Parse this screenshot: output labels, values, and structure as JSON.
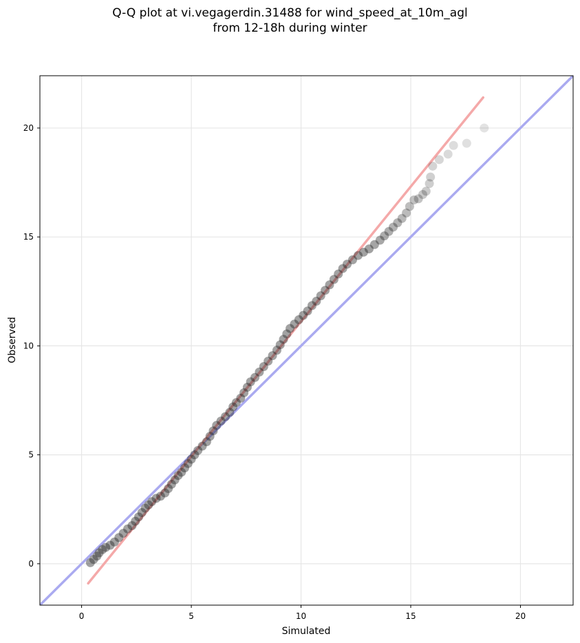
{
  "chart_data": {
    "type": "scatter",
    "title_lines": [
      "Q-Q plot at vi.vegagerdin.31488 for wind_speed_at_10m_agl",
      "from 12-18h during winter"
    ],
    "xlabel": "Simulated",
    "ylabel": "Observed",
    "xlim": [
      -1.9,
      22.4
    ],
    "ylim": [
      -1.9,
      22.4
    ],
    "xticks": [
      0,
      5,
      10,
      15,
      20
    ],
    "yticks": [
      0,
      5,
      10,
      15,
      20
    ],
    "grid": true,
    "reference_line": {
      "name": "1:1",
      "color": "#aaaaf0",
      "from": [
        -1.9,
        -1.9
      ],
      "to": [
        22.4,
        22.4
      ]
    },
    "fit_line": {
      "color": "#f4a9a9",
      "from": [
        0.3,
        -0.9
      ],
      "to": [
        18.3,
        21.4
      ]
    },
    "points_color": "#222222",
    "points": [
      [
        0.4,
        0.05
      ],
      [
        0.55,
        0.2
      ],
      [
        0.7,
        0.35
      ],
      [
        0.8,
        0.5
      ],
      [
        0.95,
        0.65
      ],
      [
        1.1,
        0.75
      ],
      [
        1.3,
        0.85
      ],
      [
        1.5,
        1.0
      ],
      [
        1.7,
        1.2
      ],
      [
        1.9,
        1.4
      ],
      [
        2.1,
        1.6
      ],
      [
        2.3,
        1.75
      ],
      [
        2.45,
        1.95
      ],
      [
        2.6,
        2.15
      ],
      [
        2.75,
        2.35
      ],
      [
        2.9,
        2.55
      ],
      [
        3.05,
        2.7
      ],
      [
        3.2,
        2.85
      ],
      [
        3.4,
        3.0
      ],
      [
        3.6,
        3.1
      ],
      [
        3.8,
        3.25
      ],
      [
        3.95,
        3.45
      ],
      [
        4.1,
        3.65
      ],
      [
        4.25,
        3.85
      ],
      [
        4.4,
        4.05
      ],
      [
        4.55,
        4.2
      ],
      [
        4.7,
        4.4
      ],
      [
        4.85,
        4.6
      ],
      [
        5.0,
        4.8
      ],
      [
        5.15,
        5.0
      ],
      [
        5.3,
        5.2
      ],
      [
        5.5,
        5.4
      ],
      [
        5.7,
        5.6
      ],
      [
        5.85,
        5.85
      ],
      [
        6.0,
        6.1
      ],
      [
        6.15,
        6.35
      ],
      [
        6.35,
        6.55
      ],
      [
        6.55,
        6.75
      ],
      [
        6.75,
        6.95
      ],
      [
        6.9,
        7.2
      ],
      [
        7.05,
        7.4
      ],
      [
        7.25,
        7.6
      ],
      [
        7.4,
        7.85
      ],
      [
        7.55,
        8.1
      ],
      [
        7.7,
        8.35
      ],
      [
        7.9,
        8.55
      ],
      [
        8.1,
        8.8
      ],
      [
        8.3,
        9.05
      ],
      [
        8.5,
        9.3
      ],
      [
        8.7,
        9.55
      ],
      [
        8.9,
        9.8
      ],
      [
        9.05,
        10.05
      ],
      [
        9.2,
        10.3
      ],
      [
        9.35,
        10.55
      ],
      [
        9.5,
        10.8
      ],
      [
        9.7,
        11.0
      ],
      [
        9.9,
        11.2
      ],
      [
        10.1,
        11.4
      ],
      [
        10.3,
        11.6
      ],
      [
        10.5,
        11.85
      ],
      [
        10.7,
        12.05
      ],
      [
        10.9,
        12.3
      ],
      [
        11.1,
        12.55
      ],
      [
        11.3,
        12.8
      ],
      [
        11.5,
        13.05
      ],
      [
        11.7,
        13.3
      ],
      [
        11.9,
        13.55
      ],
      [
        12.1,
        13.75
      ],
      [
        12.35,
        13.95
      ],
      [
        12.6,
        14.15
      ],
      [
        12.85,
        14.3
      ],
      [
        13.1,
        14.45
      ],
      [
        13.35,
        14.65
      ],
      [
        13.6,
        14.85
      ],
      [
        13.8,
        15.05
      ],
      [
        14.0,
        15.25
      ],
      [
        14.2,
        15.45
      ],
      [
        14.4,
        15.65
      ],
      [
        14.6,
        15.85
      ],
      [
        14.8,
        16.1
      ],
      [
        14.95,
        16.4
      ],
      [
        15.15,
        16.7
      ],
      [
        15.35,
        16.75
      ],
      [
        15.55,
        16.95
      ],
      [
        15.7,
        17.1
      ],
      [
        15.85,
        17.45
      ],
      [
        15.9,
        17.75
      ],
      [
        16.0,
        18.25
      ],
      [
        16.3,
        18.55
      ],
      [
        16.7,
        18.8
      ],
      [
        16.95,
        19.2
      ],
      [
        17.55,
        19.3
      ],
      [
        18.35,
        20.0
      ]
    ]
  }
}
